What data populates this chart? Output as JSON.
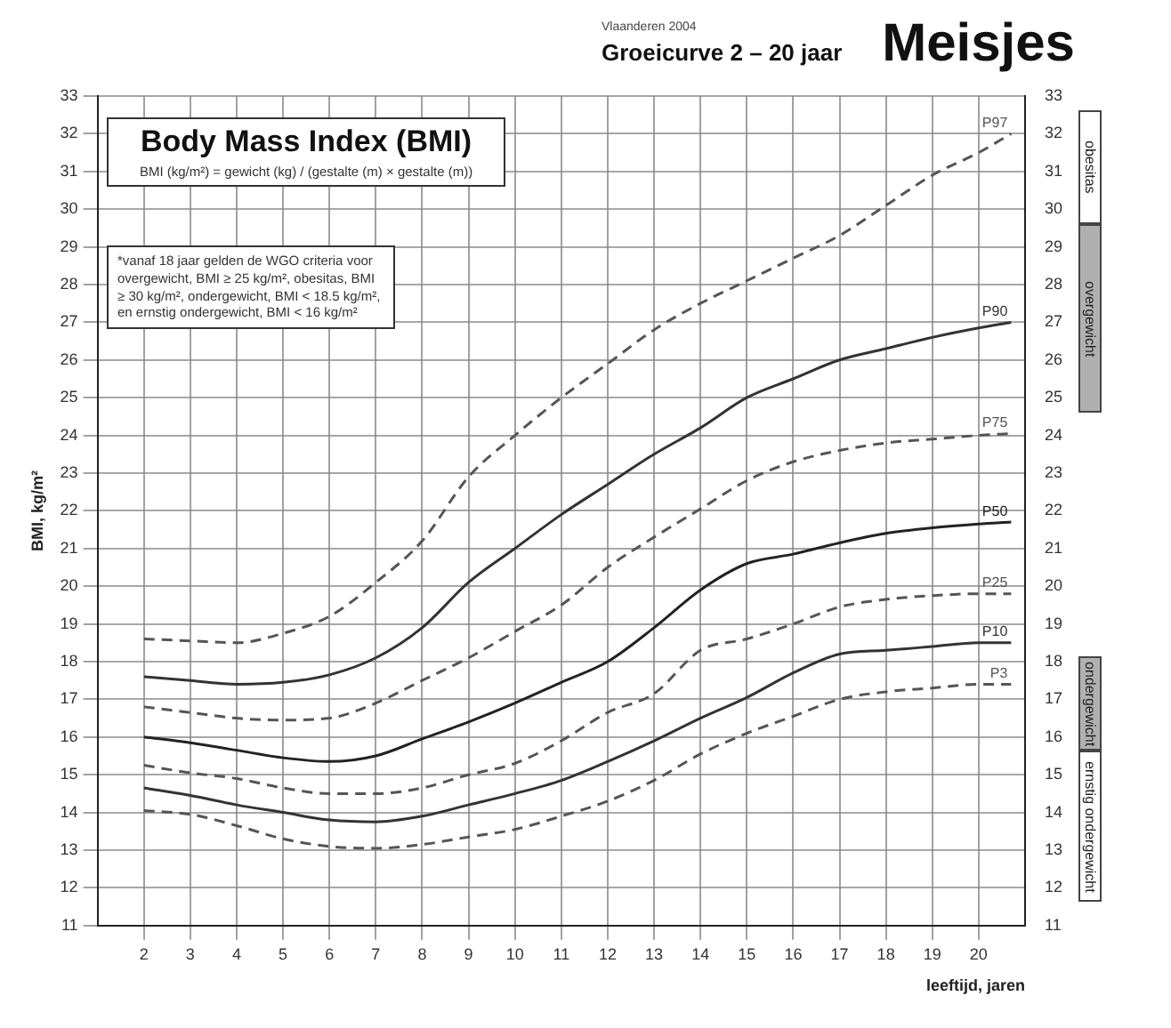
{
  "chart_data": {
    "type": "line",
    "title": "Meisjes",
    "subtitle": "Groeicurve 2 – 20 jaar",
    "xlabel": "leeftijd, jaren",
    "ylabel": "BMI, kg/m²",
    "annotations": [
      "Body Mass Index (BMI)",
      "BMI (kg/m²) = gewicht (kg) / (gestalte (m) × gestalte (m))",
      "*vanaf 18 jaar gelden de WGO criteria voor overgewicht, BMI ≥ 25 kg/m², obesitas, BMI ≥ 30 kg/m², ondergewicht, BMI < 18.5 kg/m², en ernstig ondergewicht, BMI < 16 kg/m²",
      "Vlaanderen 2004",
      "obesitas",
      "overgewicht",
      "ondergewicht",
      "ernstig ondergewicht"
    ],
    "x": [
      2,
      3,
      4,
      5,
      6,
      7,
      8,
      9,
      10,
      11,
      12,
      13,
      14,
      15,
      16,
      17,
      18,
      19,
      20,
      20.7
    ],
    "series": [
      {
        "name": "P97",
        "color": "#555555",
        "line_style": "dashed",
        "values": [
          18.6,
          18.55,
          18.5,
          18.75,
          19.2,
          20.1,
          21.2,
          22.9,
          24.0,
          25.0,
          25.9,
          26.8,
          27.5,
          28.1,
          28.7,
          29.3,
          30.1,
          30.9,
          31.5,
          32.0
        ]
      },
      {
        "name": "P90",
        "color": "#333333",
        "line_style": "solid",
        "values": [
          17.6,
          17.5,
          17.4,
          17.45,
          17.65,
          18.1,
          18.9,
          20.1,
          21.0,
          21.9,
          22.7,
          23.5,
          24.2,
          25.0,
          25.5,
          26.0,
          26.3,
          26.6,
          26.85,
          27.0
        ]
      },
      {
        "name": "P75",
        "color": "#555555",
        "line_style": "dashed",
        "values": [
          16.8,
          16.65,
          16.5,
          16.45,
          16.5,
          16.9,
          17.5,
          18.1,
          18.8,
          19.5,
          20.5,
          21.3,
          22.05,
          22.8,
          23.3,
          23.6,
          23.8,
          23.9,
          24.0,
          24.05
        ]
      },
      {
        "name": "P50",
        "color": "#222222",
        "line_style": "solid",
        "values": [
          16.0,
          15.85,
          15.65,
          15.45,
          15.35,
          15.5,
          15.95,
          16.4,
          16.9,
          17.45,
          18.0,
          18.9,
          19.9,
          20.6,
          20.85,
          21.15,
          21.4,
          21.55,
          21.65,
          21.7
        ]
      },
      {
        "name": "P25",
        "color": "#555555",
        "line_style": "dashed",
        "values": [
          15.25,
          15.05,
          14.9,
          14.65,
          14.5,
          14.5,
          14.65,
          15.0,
          15.3,
          15.9,
          16.65,
          17.15,
          18.3,
          18.6,
          19.0,
          19.45,
          19.65,
          19.75,
          19.8,
          19.8
        ]
      },
      {
        "name": "P10",
        "color": "#333333",
        "line_style": "solid",
        "values": [
          14.65,
          14.45,
          14.2,
          14.0,
          13.8,
          13.75,
          13.9,
          14.2,
          14.5,
          14.85,
          15.35,
          15.9,
          16.5,
          17.05,
          17.7,
          18.2,
          18.3,
          18.4,
          18.5,
          18.5
        ]
      },
      {
        "name": "P3",
        "color": "#555555",
        "line_style": "dashed",
        "values": [
          14.05,
          13.95,
          13.65,
          13.3,
          13.1,
          13.05,
          13.15,
          13.35,
          13.55,
          13.9,
          14.3,
          14.85,
          15.55,
          16.1,
          16.55,
          17.0,
          17.2,
          17.3,
          17.4,
          17.4
        ]
      }
    ],
    "xlim": [
      1,
      21
    ],
    "xticks": [
      2,
      3,
      4,
      5,
      6,
      7,
      8,
      9,
      10,
      11,
      12,
      13,
      14,
      15,
      16,
      17,
      18,
      19,
      20
    ],
    "ylim": [
      11,
      33
    ],
    "yticks": [
      11,
      12,
      13,
      14,
      15,
      16,
      17,
      18,
      19,
      20,
      21,
      22,
      23,
      24,
      25,
      26,
      27,
      28,
      29,
      30,
      31,
      32,
      33
    ],
    "y2lim": [
      11,
      33
    ],
    "y2ticks": [
      11,
      12,
      13,
      14,
      15,
      16,
      17,
      18,
      19,
      20,
      21,
      22,
      23,
      24,
      25,
      26,
      27,
      28,
      29,
      30,
      31,
      32,
      33
    ],
    "grid": true,
    "legend": false
  }
}
